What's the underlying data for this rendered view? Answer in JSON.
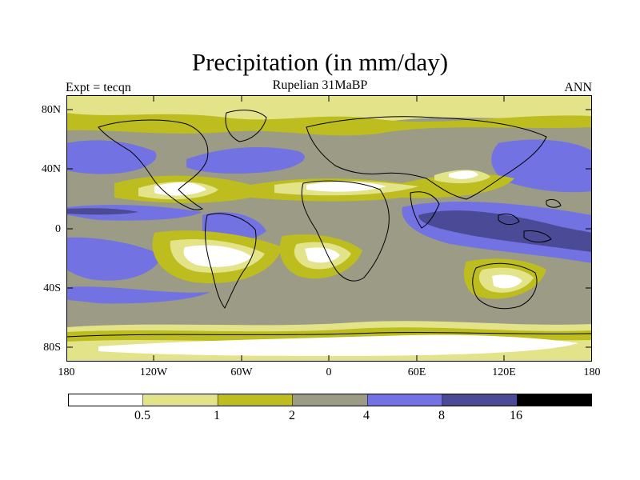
{
  "header": {
    "title": "Precipitation (in mm/day)",
    "subtitle": "Rupelian  31MaBP",
    "left_label": "Expt = tecqn",
    "right_label": "ANN"
  },
  "axes": {
    "lat_ticks": [
      "80N",
      "40N",
      "0",
      "40S",
      "80S"
    ],
    "lon_ticks": [
      "180",
      "120W",
      "60W",
      "0",
      "60E",
      "120E",
      "180"
    ]
  },
  "colorbar": {
    "levels": [
      "0.5",
      "1",
      "2",
      "4",
      "8",
      "16"
    ],
    "colors": [
      "#ffffff",
      "#e3e38a",
      "#bdbd1f",
      "#9b9b86",
      "#7272e3",
      "#4a4a96",
      "#000000"
    ]
  },
  "colors": {
    "white": "#ffffff",
    "light_yellow": "#e3e38a",
    "olive": "#bdbd1f",
    "gray": "#9b9b86",
    "light_blue": "#7272e3",
    "dark_blue": "#4a4a96"
  }
}
